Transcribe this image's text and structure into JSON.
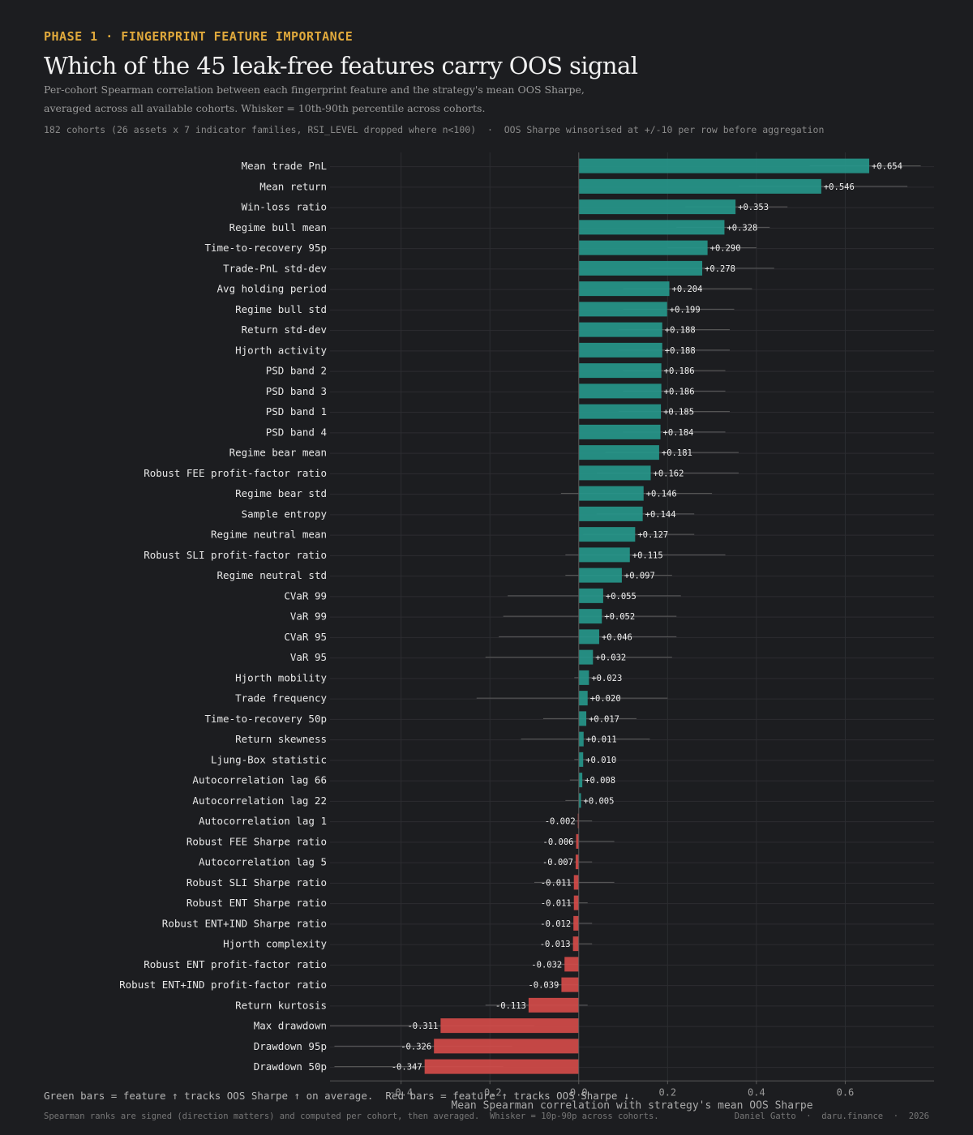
{
  "header": {
    "eyebrow": "PHASE 1  ·  FINGERPRINT FEATURE IMPORTANCE",
    "title": "Which of the 45 leak-free features carry OOS signal",
    "subtitle": "Per-cohort Spearman correlation between each fingerprint feature and the strategy's mean OOS Sharpe, averaged across all available cohorts.  Whisker = 10th-90th percentile across cohorts.",
    "meta": "182 cohorts (26 assets x 7 indicator families, RSI_LEVEL dropped where n<100)  ·  OOS Sharpe winsorised at +/-10 per row before aggregation"
  },
  "footer": {
    "legend_note": "Green bars = feature ↑ tracks OOS Sharpe ↑ on average.  Red bars = feature ↑ tracks OOS Sharpe ↓.",
    "method_note": "Spearman ranks are signed (direction matters) and computed per cohort, then averaged.  Whisker = 10p-90p across cohorts.",
    "credit": "Daniel Gatto  ·  daru.finance  ·  2026"
  },
  "chart_data": {
    "type": "bar",
    "orientation": "horizontal",
    "xlabel": "Mean Spearman correlation with strategy's mean OOS Sharpe",
    "xlim": [
      -0.56,
      0.8
    ],
    "xticks": [
      -0.4,
      -0.2,
      0.0,
      0.2,
      0.4,
      0.6
    ],
    "xtick_labels": [
      "-0.4",
      "-0.2",
      "0.0",
      "0.2",
      "0.4",
      "0.6"
    ],
    "grid": true,
    "colors": {
      "positive": "#26968a",
      "negative": "#d24b49",
      "whisker": "#5c5c5c",
      "grid": "#2c2d31",
      "axis": "#5a5a5a"
    },
    "categories": [
      "Mean trade PnL",
      "Mean return",
      "Win-loss ratio",
      "Regime bull mean",
      "Time-to-recovery 95p",
      "Trade-PnL std-dev",
      "Avg holding period",
      "Regime bull std",
      "Return std-dev",
      "Hjorth activity",
      "PSD band 2",
      "PSD band 3",
      "PSD band 1",
      "PSD band 4",
      "Regime bear mean",
      "Robust FEE profit-factor ratio",
      "Regime bear std",
      "Sample entropy",
      "Regime neutral mean",
      "Robust SLI profit-factor ratio",
      "Regime neutral std",
      "CVaR 99",
      "VaR 99",
      "CVaR 95",
      "VaR 95",
      "Hjorth mobility",
      "Trade frequency",
      "Time-to-recovery 50p",
      "Return skewness",
      "Ljung-Box statistic",
      "Autocorrelation lag 66",
      "Autocorrelation lag 22",
      "Autocorrelation lag 1",
      "Robust FEE Sharpe ratio",
      "Autocorrelation lag 5",
      "Robust SLI Sharpe ratio",
      "Robust ENT Sharpe ratio",
      "Robust ENT+IND Sharpe ratio",
      "Hjorth complexity",
      "Robust ENT profit-factor ratio",
      "Robust ENT+IND profit-factor ratio",
      "Return kurtosis",
      "Max drawdown",
      "Drawdown 95p",
      "Drawdown 50p"
    ],
    "values": [
      0.654,
      0.546,
      0.353,
      0.328,
      0.29,
      0.278,
      0.204,
      0.199,
      0.188,
      0.188,
      0.186,
      0.186,
      0.185,
      0.184,
      0.181,
      0.162,
      0.146,
      0.144,
      0.127,
      0.115,
      0.097,
      0.055,
      0.052,
      0.046,
      0.032,
      0.023,
      0.02,
      0.017,
      0.011,
      0.01,
      0.008,
      0.005,
      -0.002,
      -0.006,
      -0.007,
      -0.011,
      -0.011,
      -0.012,
      -0.013,
      -0.032,
      -0.039,
      -0.113,
      -0.311,
      -0.326,
      -0.347
    ],
    "value_labels": [
      "+0.654",
      "+0.546",
      "+0.353",
      "+0.328",
      "+0.290",
      "+0.278",
      "+0.204",
      "+0.199",
      "+0.188",
      "+0.188",
      "+0.186",
      "+0.186",
      "+0.185",
      "+0.184",
      "+0.181",
      "+0.162",
      "+0.146",
      "+0.144",
      "+0.127",
      "+0.115",
      "+0.097",
      "+0.055",
      "+0.052",
      "+0.046",
      "+0.032",
      "+0.023",
      "+0.020",
      "+0.017",
      "+0.011",
      "+0.010",
      "+0.008",
      "+0.005",
      "-0.002",
      "-0.006",
      "-0.007",
      "-0.011",
      "-0.011",
      "-0.012",
      "-0.013",
      "-0.032",
      "-0.039",
      "-0.113",
      "-0.311",
      "-0.326",
      "-0.347"
    ],
    "whisker_low": [
      0.52,
      0.36,
      0.24,
      0.22,
      0.2,
      0.16,
      0.1,
      0.1,
      0.09,
      0.09,
      0.1,
      0.1,
      0.09,
      0.1,
      0.06,
      0.04,
      -0.04,
      0.04,
      0.01,
      -0.03,
      -0.03,
      -0.16,
      -0.17,
      -0.18,
      -0.21,
      -0.01,
      -0.23,
      -0.08,
      -0.13,
      -0.01,
      -0.02,
      -0.03,
      -0.01,
      -0.03,
      -0.01,
      -0.1,
      -0.03,
      -0.03,
      -0.03,
      -0.05,
      -0.05,
      -0.21,
      -0.56,
      -0.55,
      -0.55
    ],
    "whisker_high": [
      0.77,
      0.74,
      0.47,
      0.43,
      0.4,
      0.44,
      0.39,
      0.35,
      0.34,
      0.34,
      0.33,
      0.33,
      0.34,
      0.33,
      0.36,
      0.36,
      0.3,
      0.26,
      0.26,
      0.33,
      0.21,
      0.23,
      0.22,
      0.22,
      0.21,
      0.05,
      0.2,
      0.13,
      0.16,
      0.02,
      0.02,
      0.02,
      0.03,
      0.08,
      0.03,
      0.08,
      0.02,
      0.03,
      0.03,
      0.0,
      0.0,
      0.02,
      -0.1,
      -0.15,
      -0.17
    ]
  }
}
